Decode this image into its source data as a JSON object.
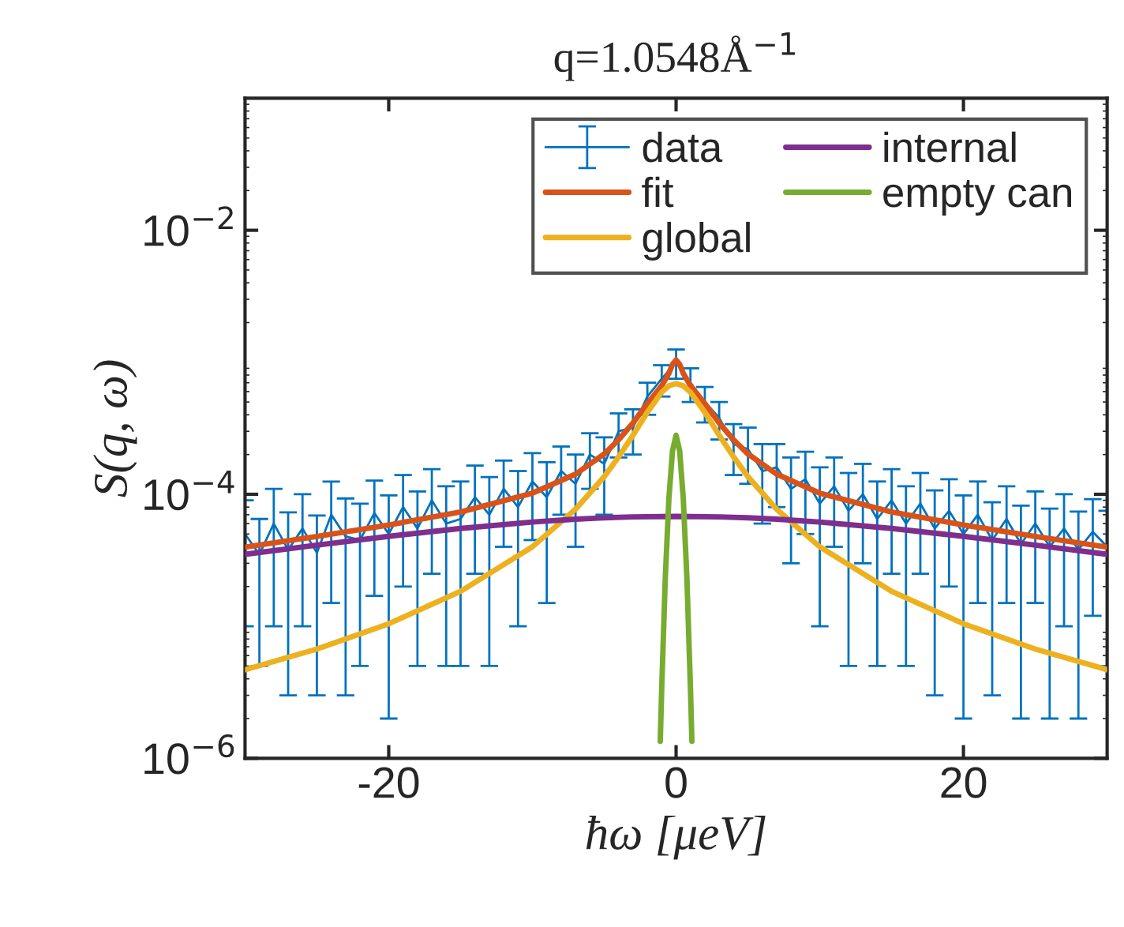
{
  "chart_data": {
    "type": "line",
    "title": "q=1.0548Å$^{−1}$",
    "xlabel": "ħω [μeV]",
    "ylabel": "S(q, ω)",
    "log": "y",
    "xlim": [
      -30,
      30
    ],
    "xticks": [
      -20,
      0,
      20
    ],
    "ylim": [
      1e-06,
      0.1
    ],
    "yticks": [
      {
        "value": 1e-06,
        "label": "10$^{−6}$"
      },
      {
        "value": 0.0001,
        "label": "10$^{−4}$"
      },
      {
        "value": 0.01,
        "label": "10$^{−2}$"
      }
    ],
    "grid": false,
    "legend": "top right",
    "series": [
      {
        "name": "data",
        "color": "#0072bd",
        "line_style": "solid",
        "x": [
          -30,
          -29,
          -28,
          -27,
          -26,
          -25,
          -24,
          -23,
          -22,
          -21,
          -20,
          -19,
          -18,
          -17,
          -16,
          -15,
          -14,
          -13,
          -12,
          -11,
          -10,
          -9,
          -8,
          -7,
          -6,
          -5,
          -4,
          -3,
          -2,
          -1,
          0,
          1,
          2,
          3,
          4,
          5,
          6,
          7,
          8,
          9,
          10,
          11,
          12,
          13,
          14,
          15,
          16,
          17,
          18,
          19,
          20,
          21,
          22,
          23,
          24,
          25,
          26,
          27,
          28,
          29,
          30
        ],
        "values": [
          5e-05,
          3.5e-05,
          6e-05,
          3.8e-05,
          5.5e-05,
          3.6e-05,
          7e-05,
          4.8e-05,
          4.5e-05,
          7.2e-05,
          5e-05,
          8e-05,
          5.5e-05,
          9e-05,
          6e-05,
          6.5e-05,
          9.5e-05,
          7e-05,
          0.00011,
          8e-05,
          0.000125,
          9.5e-05,
          0.00015,
          0.00012,
          0.0002,
          0.00017,
          0.0003,
          0.00032,
          0.00055,
          0.00075,
          0.001,
          0.0007,
          0.0005,
          0.00038,
          0.00024,
          0.00022,
          0.00015,
          0.00016,
          0.00011,
          0.00013,
          8.5e-05,
          0.000115,
          7.5e-05,
          0.0001,
          6.5e-05,
          9e-05,
          6e-05,
          8.5e-05,
          5.5e-05,
          7.5e-05,
          5e-05,
          7e-05,
          4.5e-05,
          6.5e-05,
          4.2e-05,
          6e-05,
          4e-05,
          5.5e-05,
          3.8e-05,
          5.2e-05,
          4e-05
        ],
        "errors": [
          4e-05,
          3e-05,
          5e-05,
          3.5e-05,
          4.5e-05,
          3.3e-05,
          5.5e-05,
          4.5e-05,
          4e-05,
          5.5e-05,
          4.8e-05,
          6e-05,
          5e-05,
          6.5e-05,
          5.5e-05,
          6e-05,
          7e-05,
          6.5e-05,
          7e-05,
          7e-05,
          8e-05,
          8e-05,
          8e-05,
          8e-05,
          9e-05,
          0.0001,
          0.00011,
          0.00012,
          0.00015,
          0.0002,
          0.00025,
          0.0002,
          0.00015,
          0.00012,
          0.0001,
          0.0001,
          9e-05,
          8e-05,
          8e-05,
          8e-05,
          7.5e-05,
          7.5e-05,
          7e-05,
          7e-05,
          6e-05,
          6.5e-05,
          5.5e-05,
          6e-05,
          5.2e-05,
          5.5e-05,
          4.8e-05,
          5.5e-05,
          4.2e-05,
          5e-05,
          4e-05,
          4.5e-05,
          3.8e-05,
          4.5e-05,
          3.6e-05,
          4e-05,
          3.5e-05
        ]
      },
      {
        "name": "fit",
        "color": "#d95319",
        "x": [
          -30,
          -25,
          -20,
          -15,
          -10,
          -7,
          -5,
          -4,
          -3,
          -2,
          -1,
          -0.5,
          -0.25,
          0,
          0.25,
          0.5,
          1,
          2,
          3,
          4,
          5,
          7,
          10,
          15,
          20,
          25,
          30
        ],
        "values": [
          3.98e-05,
          4.79e-05,
          5.85e-05,
          7.35e-05,
          0.000102,
          0.000142,
          0.000202,
          0.000259,
          0.000347,
          0.000486,
          0.000664,
          0.000824,
          0.000964,
          0.00104,
          0.000964,
          0.000824,
          0.000664,
          0.000486,
          0.000347,
          0.000259,
          0.000202,
          0.000142,
          0.000102,
          7.35e-05,
          5.85e-05,
          4.79e-05,
          3.98e-05
        ]
      },
      {
        "name": "global",
        "color": "#edb120",
        "x": [
          -30,
          -25,
          -20,
          -15,
          -10,
          -7,
          -5,
          -4,
          -3,
          -2,
          -1,
          -0.5,
          0,
          0.5,
          1,
          2,
          3,
          4,
          5,
          7,
          10,
          15,
          20,
          25,
          30
        ],
        "values": [
          4.69e-06,
          6.72e-06,
          1.045e-05,
          1.84e-05,
          4e-05,
          7.7e-05,
          0.000136,
          0.000192,
          0.00028,
          0.000418,
          0.000593,
          0.000663,
          0.00069,
          0.000663,
          0.000593,
          0.000418,
          0.00028,
          0.000192,
          0.000136,
          7.7e-05,
          4e-05,
          1.84e-05,
          1.045e-05,
          6.72e-06,
          4.69e-06
        ]
      },
      {
        "name": "internal",
        "color": "#7e2f8e",
        "x": [
          -30,
          -25,
          -20,
          -15,
          -10,
          -7,
          -5,
          -3,
          0,
          3,
          5,
          7,
          10,
          15,
          20,
          25,
          30
        ],
        "values": [
          3.51e-05,
          4.12e-05,
          4.8e-05,
          5.51e-05,
          6.16e-05,
          6.47e-05,
          6.63e-05,
          6.74e-05,
          6.8e-05,
          6.74e-05,
          6.63e-05,
          6.47e-05,
          6.16e-05,
          5.51e-05,
          4.8e-05,
          4.12e-05,
          3.51e-05
        ]
      },
      {
        "name": "empty can",
        "color": "#77ac30",
        "x": [
          -1.1,
          -1,
          -0.75,
          -0.5,
          -0.25,
          0,
          0.25,
          0.5,
          0.75,
          1,
          1.1
        ],
        "values": [
          1.35e-06,
          3.4e-06,
          2.34e-05,
          9.3e-05,
          0.000213,
          0.00028,
          0.000213,
          9.3e-05,
          2.34e-05,
          3.4e-06,
          1.35e-06
        ]
      }
    ]
  }
}
